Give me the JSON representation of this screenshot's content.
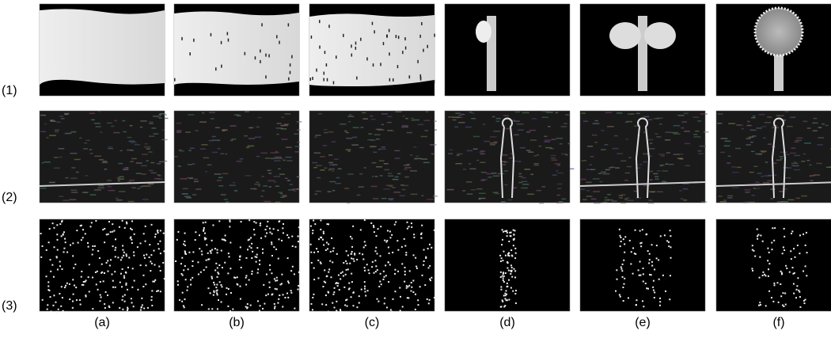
{
  "figure": {
    "row_labels": [
      "(1)",
      "(2)",
      "(3)"
    ],
    "column_labels": [
      "(a)",
      "(b)",
      "(c)",
      "(d)",
      "(e)",
      "(f)"
    ]
  }
}
